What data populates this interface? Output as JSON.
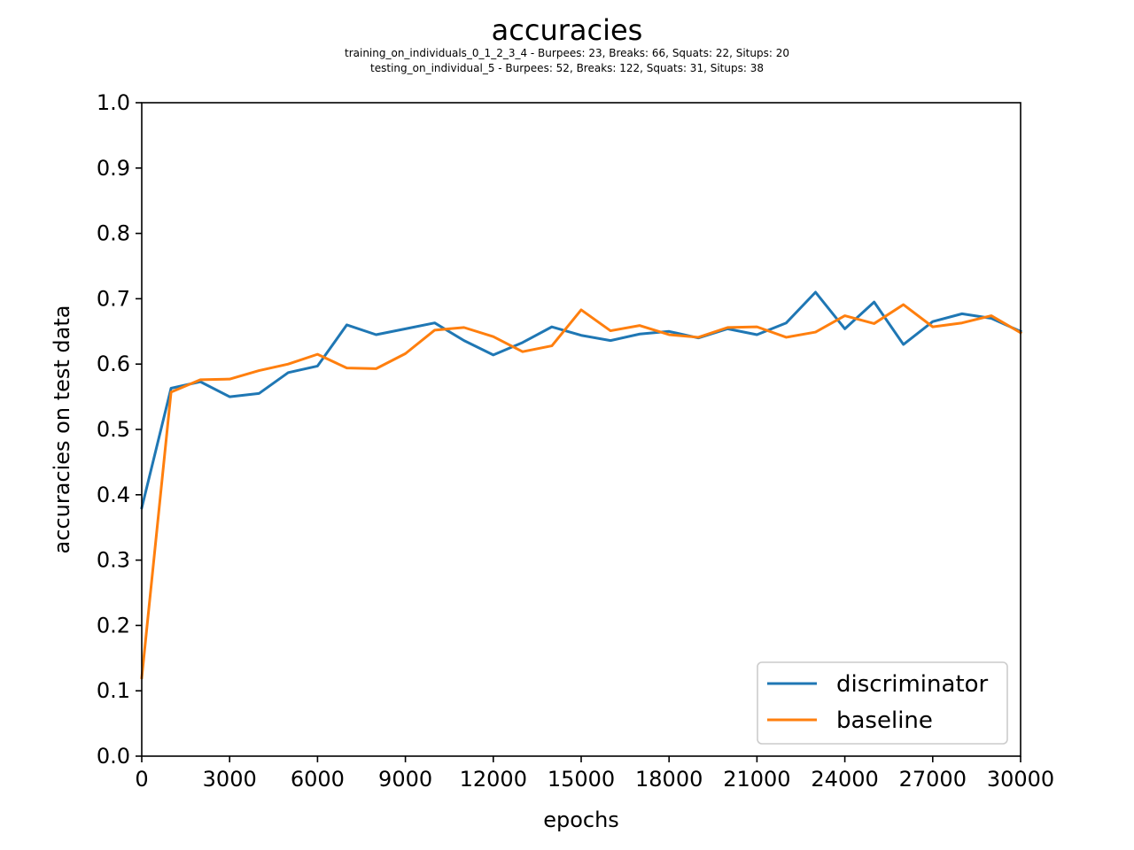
{
  "chart_data": {
    "type": "line",
    "title": "accuracies",
    "subtitle_lines": [
      "training_on_individuals_0_1_2_3_4 - Burpees: 23, Breaks: 66, Squats: 22, Situps: 20",
      "testing_on_individual_5 - Burpees: 52, Breaks: 122, Squats: 31, Situps: 38"
    ],
    "xlabel": "epochs",
    "ylabel": "accuracies on test data",
    "xlim": [
      0,
      30000
    ],
    "ylim": [
      0,
      1.0
    ],
    "xticks": [
      "0",
      "3000",
      "6000",
      "9000",
      "12000",
      "15000",
      "18000",
      "21000",
      "24000",
      "27000",
      "30000"
    ],
    "yticks": [
      "0.0",
      "0.1",
      "0.2",
      "0.3",
      "0.4",
      "0.5",
      "0.6",
      "0.7",
      "0.8",
      "0.9",
      "1.0"
    ],
    "grid": false,
    "legend_position": "lower-right",
    "x": [
      0,
      1000,
      2000,
      3000,
      4000,
      5000,
      6000,
      7000,
      8000,
      9000,
      10000,
      11000,
      12000,
      13000,
      14000,
      15000,
      16000,
      17000,
      18000,
      19000,
      20000,
      21000,
      22000,
      23000,
      24000,
      25000,
      26000,
      27000,
      28000,
      29000,
      30000
    ],
    "series": [
      {
        "name": "discriminator",
        "color": "#1f77b4",
        "values": [
          0.38,
          0.563,
          0.573,
          0.55,
          0.555,
          0.587,
          0.597,
          0.66,
          0.645,
          0.654,
          0.663,
          0.636,
          0.614,
          0.633,
          0.657,
          0.644,
          0.636,
          0.646,
          0.65,
          0.64,
          0.654,
          0.645,
          0.663,
          0.71,
          0.654,
          0.695,
          0.63,
          0.665,
          0.677,
          0.67,
          0.65
        ]
      },
      {
        "name": "baseline",
        "color": "#ff7f0e",
        "values": [
          0.12,
          0.557,
          0.576,
          0.577,
          0.59,
          0.6,
          0.615,
          0.594,
          0.593,
          0.616,
          0.652,
          0.656,
          0.642,
          0.619,
          0.628,
          0.683,
          0.651,
          0.659,
          0.645,
          0.641,
          0.656,
          0.657,
          0.641,
          0.649,
          0.674,
          0.662,
          0.691,
          0.657,
          0.663,
          0.674,
          0.648
        ]
      }
    ]
  }
}
